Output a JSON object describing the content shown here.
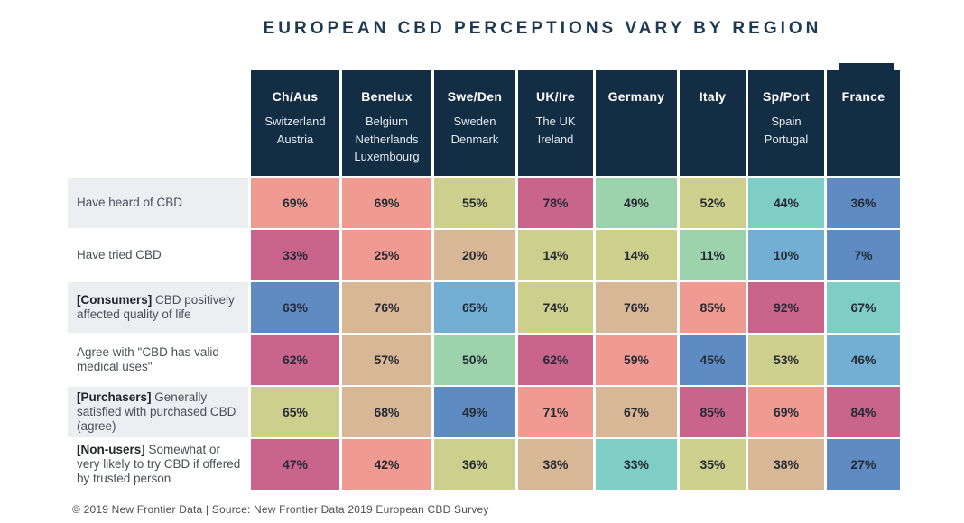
{
  "title": "EUROPEAN CBD PERCEPTIONS VARY BY REGION",
  "footer": "© 2019 New Frontier Data | Source: New Frontier Data 2019 European CBD Survey",
  "palette": {
    "magenta": "#C9648A",
    "salmon": "#EF9B92",
    "tan": "#D7B795",
    "khaki": "#CDD08C",
    "green": "#9DD3AC",
    "teal": "#7FCEC5",
    "sky": "#72AFD3",
    "blue": "#5E8CC2",
    "header_navy": "#132E44",
    "row_band_gray": "#ECEEF2",
    "title_navy": "#1C3A54"
  },
  "chart_data": {
    "type": "heatmap",
    "title": "EUROPEAN CBD PERCEPTIONS VARY BY REGION",
    "legend": "cell color encodes relative rank within each row (pink = high, blue = low)",
    "columns": [
      {
        "abbr": "Ch/Aus",
        "countries": [
          "Switzerland",
          "Austria"
        ]
      },
      {
        "abbr": "Benelux",
        "countries": [
          "Belgium",
          "Netherlands",
          "Luxembourg"
        ]
      },
      {
        "abbr": "Swe/Den",
        "countries": [
          "Sweden",
          "Denmark"
        ]
      },
      {
        "abbr": "UK/Ire",
        "countries": [
          "The UK",
          "Ireland"
        ]
      },
      {
        "abbr": "Germany",
        "countries": []
      },
      {
        "abbr": "Italy",
        "countries": []
      },
      {
        "abbr": "Sp/Port",
        "countries": [
          "Spain",
          "Portugal"
        ]
      },
      {
        "abbr": "France",
        "countries": []
      }
    ],
    "rows": [
      {
        "label_prefix": "",
        "label": "Have heard of CBD",
        "values": [
          "69%",
          "69%",
          "55%",
          "78%",
          "49%",
          "52%",
          "44%",
          "36%"
        ],
        "colors": [
          "salmon",
          "salmon",
          "khaki",
          "magenta",
          "green",
          "khaki",
          "teal",
          "blue"
        ]
      },
      {
        "label_prefix": "",
        "label": "Have tried CBD",
        "values": [
          "33%",
          "25%",
          "20%",
          "14%",
          "14%",
          "11%",
          "10%",
          "7%"
        ],
        "colors": [
          "magenta",
          "salmon",
          "tan",
          "khaki",
          "khaki",
          "green",
          "sky",
          "blue"
        ]
      },
      {
        "label_prefix": "[Consumers] ",
        "label": "CBD positively affected quality of life",
        "values": [
          "63%",
          "76%",
          "65%",
          "74%",
          "76%",
          "85%",
          "92%",
          "67%"
        ],
        "colors": [
          "blue",
          "tan",
          "sky",
          "khaki",
          "tan",
          "salmon",
          "magenta",
          "teal"
        ]
      },
      {
        "label_prefix": "",
        "label": "Agree with \"CBD has valid medical uses\"",
        "values": [
          "62%",
          "57%",
          "50%",
          "62%",
          "59%",
          "45%",
          "53%",
          "46%"
        ],
        "colors": [
          "magenta",
          "tan",
          "green",
          "magenta",
          "salmon",
          "blue",
          "khaki",
          "sky"
        ]
      },
      {
        "label_prefix": "[Purchasers] ",
        "label": "Generally satisfied with purchased CBD (agree)",
        "values": [
          "65%",
          "68%",
          "49%",
          "71%",
          "67%",
          "85%",
          "69%",
          "84%"
        ],
        "colors": [
          "khaki",
          "tan",
          "blue",
          "salmon",
          "tan",
          "magenta",
          "salmon",
          "magenta"
        ]
      },
      {
        "label_prefix": "[Non-users] ",
        "label": "Somewhat or very likely to try CBD if offered by trusted person",
        "values": [
          "47%",
          "42%",
          "36%",
          "38%",
          "33%",
          "35%",
          "38%",
          "27%"
        ],
        "colors": [
          "magenta",
          "salmon",
          "khaki",
          "tan",
          "teal",
          "khaki",
          "tan",
          "blue"
        ]
      }
    ]
  }
}
